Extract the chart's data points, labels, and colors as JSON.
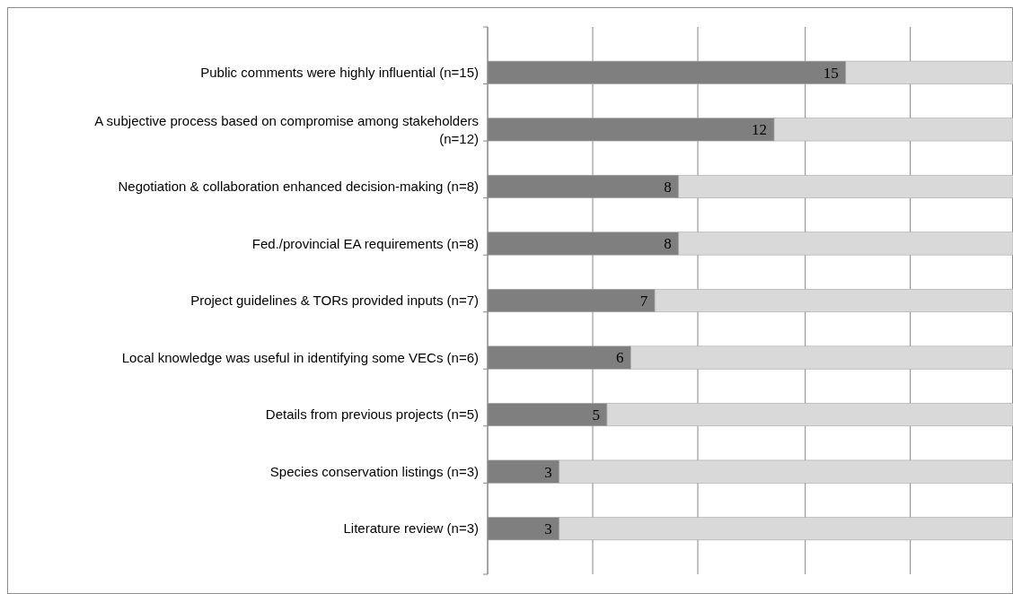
{
  "chart_data": {
    "type": "bar",
    "orientation": "horizontal",
    "stacked": true,
    "categories": [
      "Public comments were highly influential (n=15)",
      "A subjective process based on compromise among stakeholders (n=12)",
      "Negotiation & collaboration enhanced decision-making (n=8)",
      "Fed./provincial EA requirements (n=8)",
      "Project guidelines & TORs provided inputs (n=7)",
      "Local knowledge was useful in identifying some VECs (n=6)",
      "Details from previous projects (n=5)",
      "Species conservation listings (n=3)",
      "Literature review (n=3)"
    ],
    "series": [
      {
        "color": "#7f7f7f",
        "values": [
          15,
          12,
          8,
          8,
          7,
          6,
          5,
          3,
          3
        ],
        "value_labels": [
          "15",
          "12",
          "8",
          "8",
          "7",
          "6",
          "5",
          "3",
          "3"
        ]
      },
      {
        "color": "#d9d9d9",
        "values": [
          7,
          10,
          14,
          14,
          15,
          16,
          17,
          19,
          19
        ]
      }
    ],
    "xlim": [
      0,
      22
    ],
    "xticks": [
      {
        "value": 0,
        "label": null
      },
      {
        "value": 4.4,
        "label": null
      },
      {
        "value": 8.8,
        "label": null
      },
      {
        "value": 13.3,
        "label": null
      },
      {
        "value": 17.7,
        "label": null
      }
    ],
    "grid": "x",
    "tick_labels": "y"
  }
}
